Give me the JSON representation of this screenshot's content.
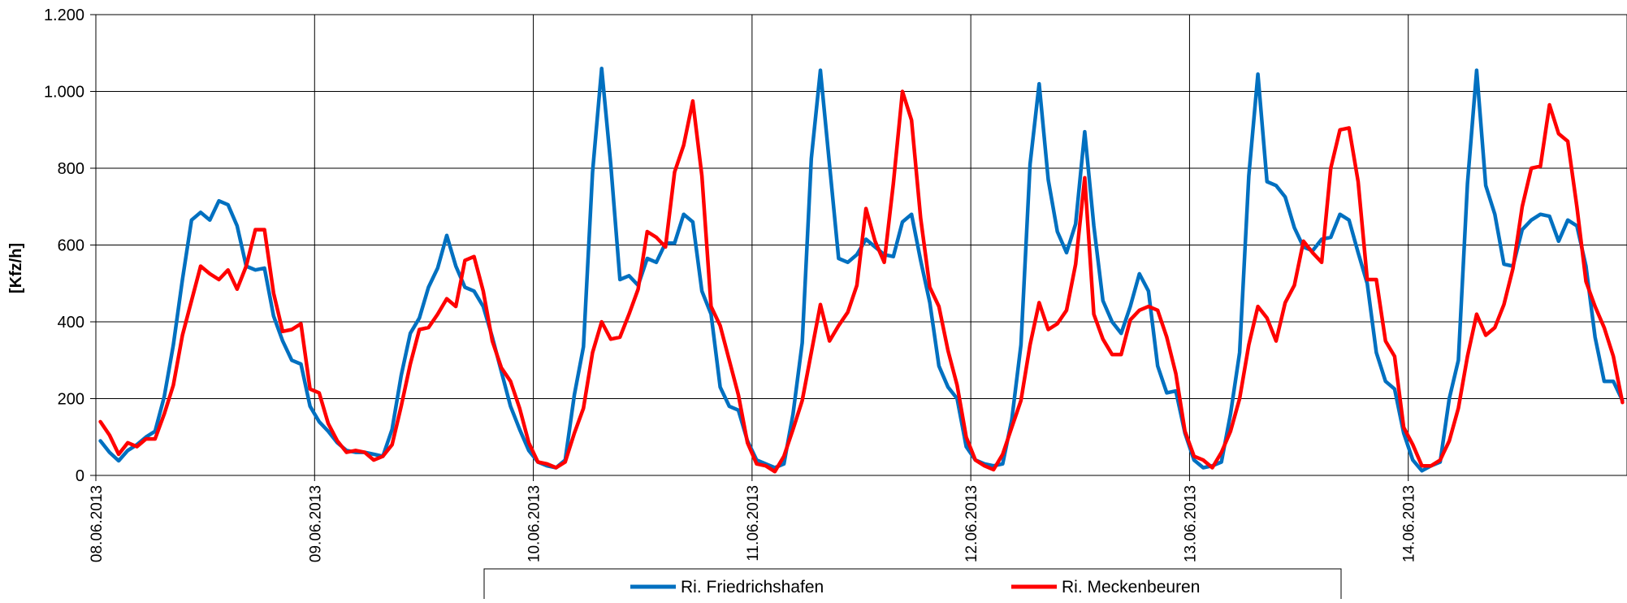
{
  "chart_data": {
    "type": "line",
    "title": "",
    "xlabel": "",
    "ylabel": "[Kfz/h]",
    "ylim": [
      0,
      1200
    ],
    "yticks": [
      0,
      200,
      400,
      600,
      800,
      1000,
      1200
    ],
    "ytick_labels": [
      "0",
      "200",
      "400",
      "600",
      "800",
      "1.000",
      "1.200"
    ],
    "x_axis": "hourly, starting 08.06.2013 00:00",
    "xlim_hours": [
      0,
      168
    ],
    "x_tick_labels": [
      "08.06.2013",
      "09.06.2013",
      "10.06.2013",
      "11.06.2013",
      "12.06.2013",
      "13.06.2013",
      "14.06.2013"
    ],
    "x_tick_hours": [
      0,
      24,
      48,
      72,
      96,
      120,
      144
    ],
    "grid": true,
    "legend_position": "bottom-center",
    "series": [
      {
        "name": "Ri. Friedrichshafen",
        "color": "#0070C0",
        "values": [
          90,
          60,
          38,
          65,
          80,
          100,
          115,
          205,
          340,
          510,
          665,
          685,
          665,
          715,
          705,
          650,
          545,
          535,
          540,
          415,
          350,
          300,
          290,
          180,
          140,
          115,
          85,
          65,
          60,
          60,
          55,
          50,
          120,
          260,
          370,
          410,
          490,
          540,
          625,
          545,
          490,
          480,
          440,
          360,
          270,
          180,
          120,
          65,
          35,
          25,
          20,
          40,
          210,
          335,
          790,
          1060,
          810,
          510,
          520,
          495,
          565,
          555,
          605,
          605,
          680,
          660,
          480,
          420,
          230,
          180,
          170,
          90,
          40,
          30,
          20,
          30,
          160,
          345,
          825,
          1055,
          810,
          565,
          555,
          575,
          615,
          595,
          575,
          570,
          660,
          680,
          560,
          450,
          285,
          230,
          200,
          75,
          40,
          30,
          25,
          30,
          145,
          340,
          810,
          1020,
          770,
          635,
          580,
          655,
          895,
          650,
          455,
          400,
          370,
          440,
          525,
          480,
          285,
          215,
          220,
          110,
          40,
          20,
          25,
          35,
          160,
          320,
          780,
          1045,
          765,
          755,
          725,
          645,
          595,
          585,
          615,
          620,
          680,
          665,
          580,
          500,
          320,
          245,
          225,
          110,
          40,
          12,
          25,
          35,
          200,
          300,
          760,
          1055,
          755,
          680,
          550,
          545,
          640,
          665,
          680,
          675,
          610,
          665,
          650,
          545,
          360,
          245,
          245,
          195
        ]
      },
      {
        "name": "Ri. Meckenbeuren",
        "color": "#FF0000",
        "values": [
          140,
          105,
          55,
          85,
          75,
          95,
          95,
          160,
          235,
          365,
          455,
          545,
          525,
          510,
          535,
          485,
          545,
          640,
          640,
          475,
          375,
          380,
          395,
          225,
          215,
          135,
          90,
          60,
          65,
          60,
          40,
          50,
          80,
          180,
          290,
          380,
          385,
          420,
          460,
          440,
          560,
          570,
          480,
          350,
          280,
          245,
          175,
          85,
          35,
          30,
          20,
          35,
          110,
          175,
          320,
          400,
          355,
          360,
          420,
          485,
          635,
          620,
          595,
          790,
          860,
          975,
          780,
          440,
          390,
          300,
          210,
          85,
          30,
          25,
          10,
          50,
          120,
          195,
          320,
          445,
          350,
          390,
          425,
          495,
          695,
          610,
          555,
          760,
          1000,
          925,
          670,
          490,
          440,
          325,
          235,
          100,
          40,
          25,
          15,
          55,
          125,
          195,
          340,
          450,
          380,
          395,
          430,
          550,
          775,
          420,
          355,
          315,
          315,
          405,
          430,
          440,
          430,
          360,
          265,
          115,
          50,
          40,
          20,
          60,
          115,
          200,
          340,
          440,
          410,
          350,
          450,
          495,
          610,
          580,
          555,
          800,
          900,
          905,
          765,
          510,
          510,
          350,
          310,
          125,
          80,
          25,
          25,
          40,
          90,
          175,
          310,
          420,
          365,
          385,
          445,
          540,
          700,
          800,
          805,
          965,
          890,
          870,
          700,
          505,
          440,
          385,
          310,
          190
        ]
      }
    ]
  }
}
